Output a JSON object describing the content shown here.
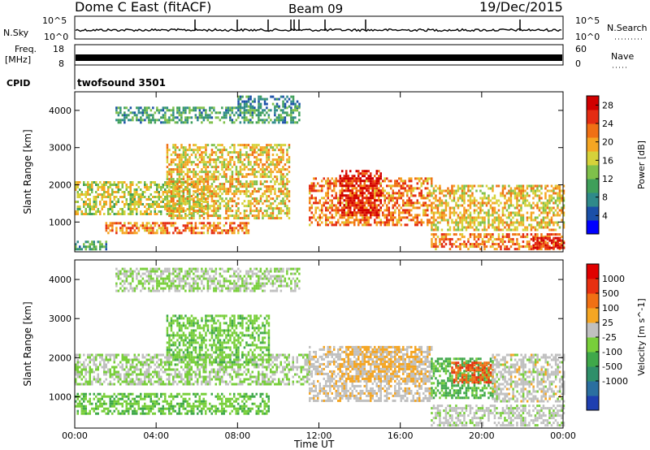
{
  "header": {
    "station": "Dome C East (fitACF)",
    "beam": "Beam 09",
    "date": "19/Dec/2015"
  },
  "aux_panels": {
    "nsky_label": "N.Sky",
    "nsky_ticks": [
      "10^5",
      "10^0"
    ],
    "nsearch_label": "N.Search",
    "freq_label_1": "Freq.",
    "freq_label_2": "[MHz]",
    "freq_ticks": [
      "18",
      "8"
    ],
    "nave_label": "Nave",
    "nave_ticks": [
      "60",
      "0"
    ],
    "cpid_label": "CPID",
    "cpid_value": "twofsound 3501"
  },
  "chart_data": [
    {
      "type": "heatmap",
      "name": "Power",
      "xlabel": "Time UT",
      "ylabel": "Slant Range [km]",
      "x_ticks": [
        "00:00",
        "04:00",
        "08:00",
        "12:00",
        "16:00",
        "20:00",
        "00:00"
      ],
      "xlim_hours": [
        0,
        24
      ],
      "ylim": [
        200,
        4500
      ],
      "y_ticks": [
        1000,
        2000,
        3000,
        4000
      ],
      "colorbar": {
        "label": "Power [dB]",
        "ticks": [
          4,
          8,
          12,
          16,
          20,
          24,
          28
        ],
        "range": [
          0,
          30
        ],
        "colors": [
          "#0000ff",
          "#1a4fa8",
          "#2f8a8a",
          "#3f9f5a",
          "#7fc04a",
          "#d6d23a",
          "#f5a623",
          "#f07014",
          "#e42c12",
          "#d10000"
        ]
      },
      "echo_regions": [
        {
          "t0": 0.0,
          "t1": 6.5,
          "r0": 1200,
          "r1": 2100,
          "level": 16
        },
        {
          "t0": 0.0,
          "t1": 1.5,
          "r0": 250,
          "r1": 500,
          "level": 10
        },
        {
          "t0": 1.5,
          "t1": 8.5,
          "r0": 700,
          "r1": 1000,
          "level": 22
        },
        {
          "t0": 4.5,
          "t1": 10.5,
          "r0": 1100,
          "r1": 3100,
          "level": 18
        },
        {
          "t0": 2.0,
          "t1": 11.0,
          "r0": 3700,
          "r1": 4100,
          "level": 10
        },
        {
          "t0": 8.0,
          "t1": 11.0,
          "r0": 4100,
          "r1": 4400,
          "level": 8
        },
        {
          "t0": 11.5,
          "t1": 17.5,
          "r0": 900,
          "r1": 2200,
          "level": 22
        },
        {
          "t0": 13.0,
          "t1": 15.0,
          "r0": 1200,
          "r1": 2400,
          "level": 28
        },
        {
          "t0": 17.5,
          "t1": 24.0,
          "r0": 800,
          "r1": 2000,
          "level": 18
        },
        {
          "t0": 17.5,
          "t1": 24.0,
          "r0": 250,
          "r1": 700,
          "level": 22
        },
        {
          "t0": 22.5,
          "t1": 24.0,
          "r0": 300,
          "r1": 600,
          "level": 28
        }
      ]
    },
    {
      "type": "heatmap",
      "name": "Velocity",
      "xlabel": "Time UT",
      "ylabel": "Slant Range [km]",
      "x_ticks": [
        "00:00",
        "04:00",
        "08:00",
        "12:00",
        "16:00",
        "20:00",
        "00:00"
      ],
      "xlim_hours": [
        0,
        24
      ],
      "ylim": [
        200,
        4500
      ],
      "y_ticks": [
        1000,
        2000,
        3000,
        4000
      ],
      "colorbar": {
        "label": "Velocity [m s^-1]",
        "ticks": [
          "1000",
          "500",
          "100",
          "25",
          "-25",
          "-100",
          "-500",
          "-1000"
        ],
        "range": [
          -1200,
          1200
        ],
        "colors": [
          "#1f3fb0",
          "#2b6fa0",
          "#2f8f6a",
          "#3fa84a",
          "#78cf3a",
          "#c0c0c0",
          "#f5a623",
          "#f07014",
          "#e83010",
          "#e00000"
        ]
      },
      "echo_regions": [
        {
          "t0": 0.0,
          "t1": 11.5,
          "r0": 1300,
          "r1": 2100,
          "level": 0
        },
        {
          "t0": 0.0,
          "t1": 9.5,
          "r0": 600,
          "r1": 1100,
          "level": -200
        },
        {
          "t0": 4.5,
          "t1": 9.5,
          "r0": 1800,
          "r1": 3100,
          "level": -150
        },
        {
          "t0": 2.0,
          "t1": 11.0,
          "r0": 3700,
          "r1": 4300,
          "level": 0
        },
        {
          "t0": 11.5,
          "t1": 17.5,
          "r0": 900,
          "r1": 2300,
          "level": 150
        },
        {
          "t0": 13.0,
          "t1": 17.0,
          "r0": 1400,
          "r1": 2300,
          "level": 300
        },
        {
          "t0": 17.5,
          "t1": 20.5,
          "r0": 1000,
          "r1": 2000,
          "level": -300
        },
        {
          "t0": 18.5,
          "t1": 20.5,
          "r0": 1400,
          "r1": 1900,
          "level": 700
        },
        {
          "t0": 20.5,
          "t1": 24.0,
          "r0": 900,
          "r1": 2100,
          "level": 120
        },
        {
          "t0": 17.5,
          "t1": 24.0,
          "r0": 300,
          "r1": 800,
          "level": 80
        }
      ]
    }
  ]
}
